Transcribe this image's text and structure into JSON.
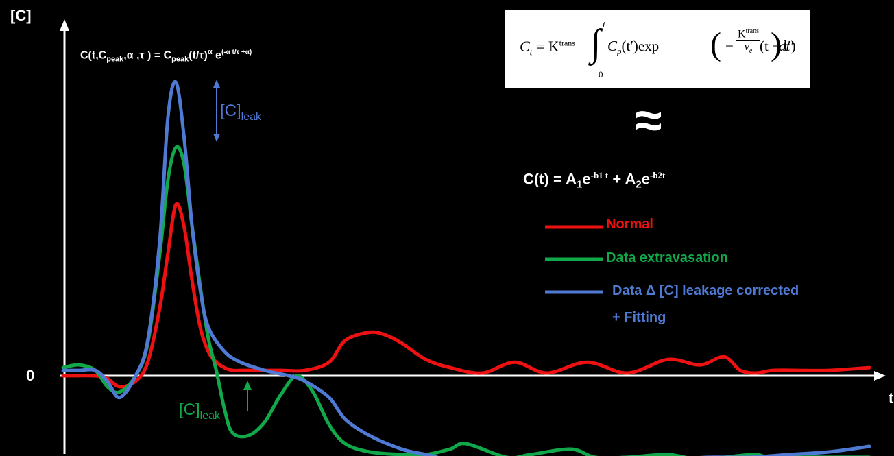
{
  "chart_data": {
    "type": "line",
    "title": "",
    "ylabel": "[C]",
    "xlabel": "t",
    "y_zero_label": "0",
    "xlim": [
      0,
      100
    ],
    "ylim": [
      -0.3,
      1.2
    ],
    "series": [
      {
        "name": "Normal",
        "color": "#ee1111",
        "x": [
          0,
          4,
          5.5,
          7,
          9,
          10.5,
          12,
          13,
          14,
          15,
          16,
          17,
          18,
          19,
          20,
          21,
          22,
          23,
          25,
          27,
          30,
          33,
          35,
          38,
          40,
          42,
          45,
          48,
          52,
          56,
          60,
          65,
          70,
          75,
          79,
          82,
          84,
          86,
          88,
          91,
          95,
          100
        ],
        "y": [
          0.0,
          0.0,
          -0.01,
          -0.04,
          -0.02,
          0.05,
          0.25,
          0.45,
          0.63,
          0.55,
          0.35,
          0.18,
          0.09,
          0.05,
          0.03,
          0.02,
          0.02,
          0.02,
          0.02,
          0.02,
          0.02,
          0.05,
          0.13,
          0.16,
          0.15,
          0.12,
          0.06,
          0.03,
          0.01,
          0.05,
          0.01,
          0.05,
          0.01,
          0.06,
          0.04,
          0.07,
          0.02,
          0.01,
          0.02,
          0.02,
          0.02,
          0.03
        ]
      },
      {
        "name": "Data extravasation",
        "color": "#11a84a",
        "x": [
          0,
          2,
          4,
          5.5,
          7,
          9,
          10.5,
          12,
          13,
          14,
          15,
          16,
          17,
          18,
          19,
          20,
          21,
          23,
          25,
          27,
          29,
          31,
          33,
          35,
          38,
          42,
          45,
          48,
          50,
          55,
          58,
          63,
          66,
          70,
          75,
          79,
          82,
          86,
          88,
          91,
          95,
          100
        ],
        "y": [
          0.03,
          0.04,
          0.02,
          -0.04,
          -0.06,
          0.0,
          0.12,
          0.45,
          0.72,
          0.84,
          0.78,
          0.55,
          0.33,
          0.14,
          0.02,
          -0.12,
          -0.21,
          -0.22,
          -0.17,
          -0.07,
          0.0,
          -0.06,
          -0.18,
          -0.25,
          -0.28,
          -0.29,
          -0.29,
          -0.27,
          -0.25,
          -0.3,
          -0.29,
          -0.27,
          -0.3,
          -0.3,
          -0.29,
          -0.31,
          -0.3,
          -0.29,
          -0.31,
          -0.3,
          -0.3,
          -0.3
        ]
      },
      {
        "name": "Data Δ [C] leakage corrected + Fitting",
        "color": "#4f7ad3",
        "x": [
          0,
          2,
          4,
          5.5,
          7,
          9,
          10.5,
          12,
          13,
          14,
          15,
          16,
          17,
          18,
          20,
          22,
          25,
          28,
          30,
          33,
          35,
          38,
          42,
          45,
          48,
          52,
          56,
          60,
          65,
          70,
          75,
          80,
          85,
          90,
          95,
          100
        ],
        "y": [
          0.02,
          0.02,
          0.02,
          -0.02,
          -0.08,
          0.0,
          0.13,
          0.5,
          0.95,
          1.08,
          0.88,
          0.55,
          0.32,
          0.18,
          0.09,
          0.05,
          0.02,
          0.0,
          -0.02,
          -0.08,
          -0.16,
          -0.22,
          -0.27,
          -0.29,
          -0.31,
          -0.32,
          -0.33,
          -0.33,
          -0.33,
          -0.32,
          -0.31,
          -0.3,
          -0.3,
          -0.29,
          -0.28,
          -0.26
        ]
      }
    ],
    "legend": {
      "placement": "right",
      "items": [
        {
          "label": "Normal",
          "color": "#ee1111"
        },
        {
          "label": "Data extravasation",
          "color": "#11a84a"
        },
        {
          "label": "Data Δ [C] leakage corrected",
          "color": "#4f7ad3"
        },
        {
          "label": "+ Fitting",
          "color": "#4f7ad3"
        }
      ]
    },
    "annotations": {
      "gamma_formula": {
        "lhs": "C(t,C",
        "lhs_sub": "peak",
        "lhs_rest": ",α ,τ ) = C",
        "rhs_sub": "peak",
        "rhs": "(t/τ)",
        "alpha_sup": "α",
        "exp_base": " e",
        "exp_sup": "(-α t/τ +α)"
      },
      "biexp_formula": {
        "lhs": "C(t) = A",
        "sub1": "1",
        "e1": "e",
        "sup1": "-b1 t",
        "plus": " + A",
        "sub2": "2",
        "e2": "e",
        "sup2": "-b2t"
      },
      "approx_symbol": "≈",
      "leak_label_blue": {
        "main": "[C]",
        "sub": "leak",
        "color": "#4f7ad3"
      },
      "leak_label_green": {
        "main": "[C]",
        "sub": "leak",
        "color": "#11a84a"
      },
      "tofts_formula": {
        "ct": "C",
        "ct_sub": "t",
        "eq_k": " = K",
        "k_sup": "trans",
        "int": "∫",
        "upper": "t",
        "lower": "0",
        "integrand": "C",
        "integrand_sub": "p",
        "integrand_rest": "(t′)exp",
        "frac_num": "K",
        "frac_num_sup": "trans",
        "frac_den": "v",
        "frac_den_sub": "e",
        "tail": "(t − t′)",
        "dt": "dt′"
      }
    }
  }
}
